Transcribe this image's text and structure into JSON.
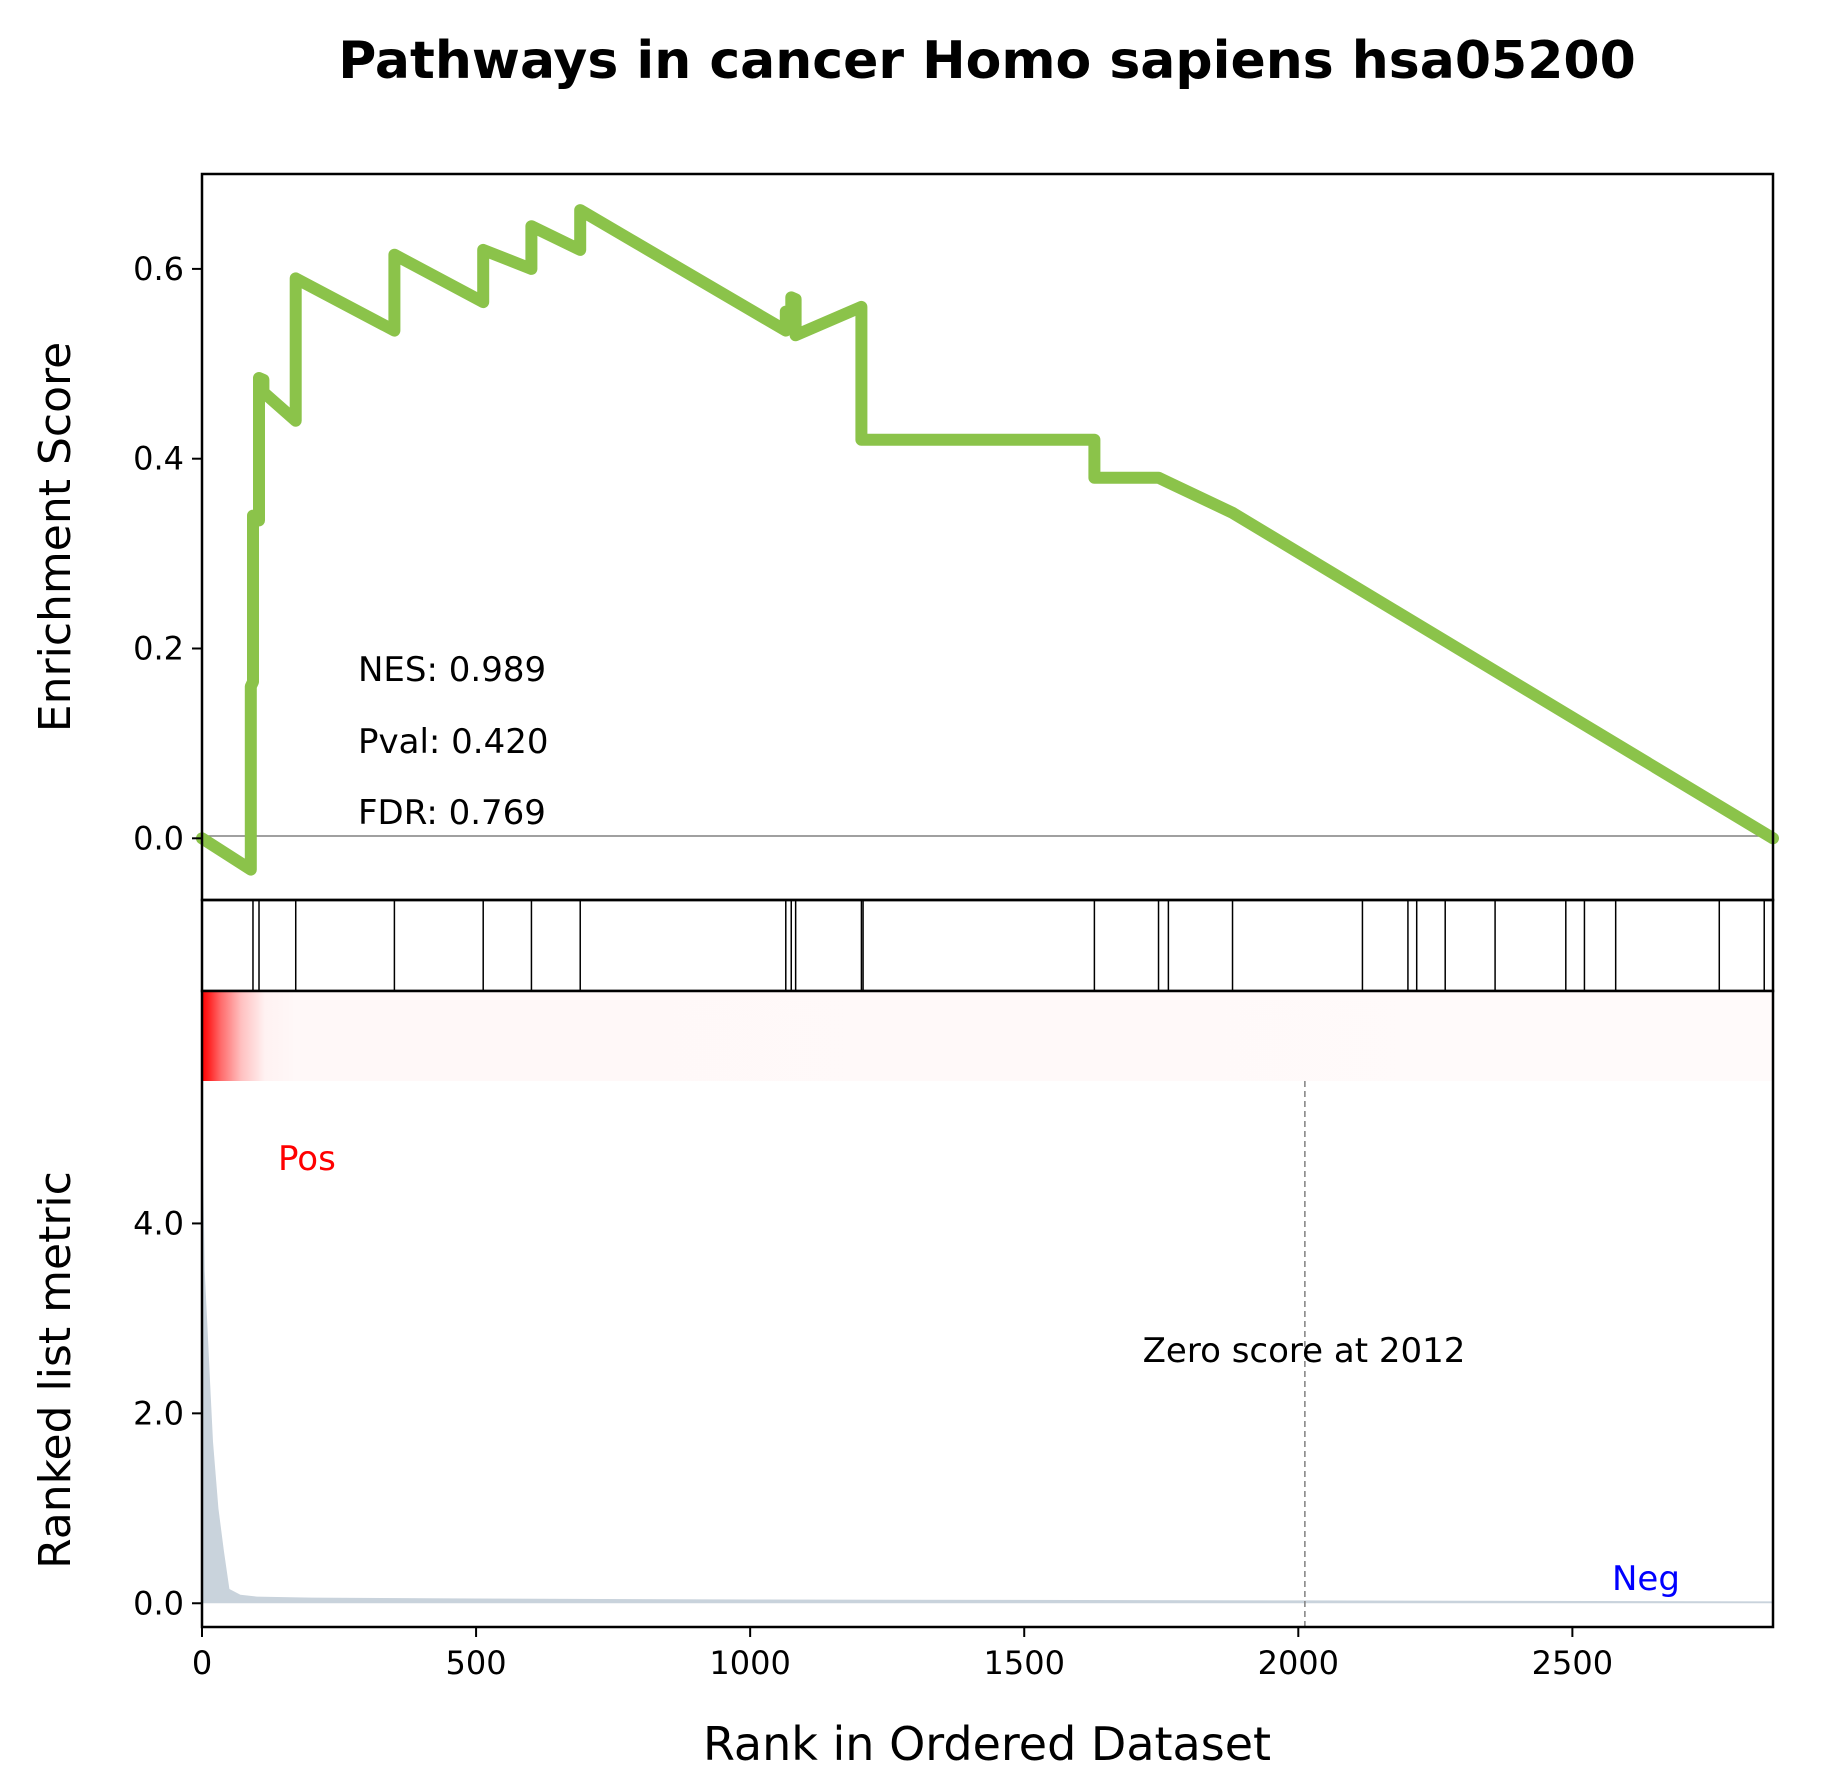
{
  "chart_data": {
    "type": "line",
    "title": "Pathways in cancer Homo sapiens hsa05200",
    "xlabel": "Rank in Ordered Dataset",
    "xlim": [
      0,
      2866
    ],
    "x_ticks": [
      0,
      500,
      1000,
      1500,
      2000,
      2500
    ],
    "x_tick_labels": [
      "0",
      "500",
      "1000",
      "1500",
      "2000",
      "2500"
    ],
    "enrichment": {
      "ylabel": "Enrichment Score",
      "ylim": [
        -0.065,
        0.7
      ],
      "y_ticks": [
        0.0,
        0.2,
        0.4,
        0.6
      ],
      "y_tick_labels": [
        "0.0",
        "0.2",
        "0.4",
        "0.6"
      ],
      "line_color": "#8bc34a",
      "zero_line": true,
      "x": [
        0,
        89,
        89,
        93,
        93,
        104,
        104,
        112,
        112,
        171,
        171,
        351,
        351,
        513,
        513,
        601,
        601,
        690,
        690,
        1065,
        1065,
        1075,
        1075,
        1083,
        1083,
        1203,
        1203,
        1628,
        1628,
        1745,
        1745,
        1763,
        1763,
        1880,
        1880,
        2866
      ],
      "y": [
        0.0,
        -0.033,
        0.16,
        0.165,
        0.34,
        0.335,
        0.485,
        0.483,
        0.47,
        0.44,
        0.59,
        0.535,
        0.615,
        0.565,
        0.62,
        0.6,
        0.645,
        0.62,
        0.662,
        0.535,
        0.555,
        0.553,
        0.57,
        0.568,
        0.53,
        0.56,
        0.42,
        0.42,
        0.38,
        0.38,
        0.38,
        0.375,
        0.375,
        0.343,
        0.343,
        0.0
      ],
      "annotations": [
        "NES: 0.989",
        "Pval: 0.420",
        "FDR: 0.769"
      ]
    },
    "hits": [
      93,
      104,
      171,
      351,
      513,
      601,
      690,
      1065,
      1075,
      1083,
      1203,
      1206,
      1628,
      1745,
      1763,
      1880,
      2117,
      2200,
      2216,
      2268,
      2359,
      2488,
      2522,
      2579,
      2768,
      2850
    ],
    "ranked_metric": {
      "ylabel": "Ranked list metric",
      "ylim": [
        -0.25,
        5.5
      ],
      "y_ticks": [
        0.0,
        2.0,
        4.0
      ],
      "y_tick_labels": [
        "0.0",
        "2.0",
        "4.0"
      ],
      "fill_color": "#c9d3dc",
      "x": [
        0,
        2,
        5,
        10,
        15,
        20,
        30,
        40,
        50,
        70,
        100,
        200,
        500,
        1000,
        2012,
        2866
      ],
      "y": [
        5.3,
        4.6,
        3.5,
        2.9,
        2.3,
        1.7,
        1.0,
        0.55,
        0.15,
        0.09,
        0.07,
        0.06,
        0.05,
        0.04,
        0.03,
        0.02
      ],
      "zero_score_rank": 2012,
      "zero_label": "Zero score at 2012",
      "pos_label": "Pos",
      "neg_label": "Neg",
      "pos_color": "#ff0000",
      "neg_color": "#0000ff"
    }
  }
}
